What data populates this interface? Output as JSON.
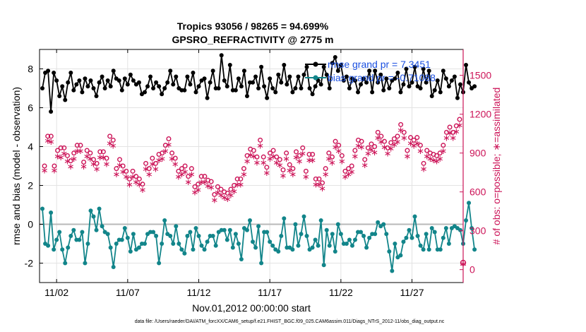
{
  "chart_data": {
    "type": "line",
    "title_line1": "Tropics 93056 / 98265 = 94.699%",
    "title_line2": "GPSRO_REFRACTIVITY @ 2775 m",
    "xlabel": "Nov.01,2012 00:00:00 start",
    "ylabel_left": "rmse and bias (model - observation)",
    "ylabel_right": "# of obs: o=possible; ∗=assimilated",
    "footnote": "data file: /Users/raeder/DAI/ATM_forcXX/CAM6_setup/f.e21.FHIST_BGC.f09_025.CAM6assim.011/Diags_NTrS_2012-11/obs_diag_output.nc",
    "xlim_days": [
      -0.2,
      29.6
    ],
    "ylim_left": [
      -3,
      9
    ],
    "ylim_right": [
      -100,
      1700
    ],
    "x_ticks": [
      {
        "day": 1,
        "label": "11/02"
      },
      {
        "day": 6,
        "label": "11/07"
      },
      {
        "day": 11,
        "label": "11/12"
      },
      {
        "day": 16,
        "label": "11/17"
      },
      {
        "day": 21,
        "label": "11/22"
      },
      {
        "day": 26,
        "label": "11/27"
      }
    ],
    "y_left_ticks": [
      {
        "value": -2,
        "label": "-2"
      },
      {
        "value": 0,
        "label": "0"
      },
      {
        "value": 2,
        "label": "2"
      },
      {
        "value": 4,
        "label": "4"
      },
      {
        "value": 6,
        "label": "6"
      },
      {
        "value": 8,
        "label": "8"
      }
    ],
    "y_right_ticks": [
      {
        "value": 0,
        "label": "0"
      },
      {
        "value": 300,
        "label": "300"
      },
      {
        "value": 600,
        "label": "600"
      },
      {
        "value": 900,
        "label": "900"
      },
      {
        "value": 1200,
        "label": "1200"
      },
      {
        "value": 1500,
        "label": "1500"
      }
    ],
    "colors": {
      "rmse": "#000000",
      "bias": "#12858a",
      "counts": "#cc1458",
      "legend_text": "#1a4fe0",
      "zero_line": "#b8b8b8",
      "grid": "#e3e3e3"
    },
    "series": [
      {
        "name": "rmse",
        "legend": "rmse grand pr = 7.3451",
        "axis": "left",
        "values": [
          7.0,
          7.8,
          7.9,
          5.8,
          7.8,
          7.4,
          6.6,
          7.1,
          6.4,
          7.3,
          7.8,
          6.9,
          7.2,
          7.4,
          6.8,
          7.5,
          7.1,
          7.4,
          7.0,
          6.6,
          7.3,
          7.6,
          7.0,
          7.4,
          7.1,
          7.9,
          7.5,
          7.4,
          6.9,
          7.5,
          7.2,
          7.7,
          7.4,
          7.2,
          7.3,
          6.7,
          6.8,
          7.1,
          7.6,
          7.0,
          7.3,
          7.1,
          6.7,
          7.0,
          7.3,
          7.9,
          7.2,
          7.6,
          7.0,
          6.9,
          6.9,
          7.6,
          7.2,
          7.8,
          6.8,
          7.1,
          7.4,
          7.5,
          6.5,
          7.3,
          7.9,
          7.0,
          7.0,
          8.7,
          7.4,
          7.1,
          8.2,
          6.9,
          6.9,
          7.5,
          7.1,
          7.9,
          6.6,
          7.3,
          7.3,
          7.6,
          7.0,
          8.1,
          7.1,
          6.5,
          7.5,
          7.0,
          6.8,
          7.7,
          7.3,
          8.2,
          7.2,
          7.6,
          6.8,
          7.0,
          7.6,
          7.0,
          7.7,
          8.1,
          7.0,
          6.7,
          7.1,
          7.4,
          7.2,
          8.1,
          7.7,
          7.0,
          8.3,
          8.6,
          7.9,
          8.2,
          7.4,
          7.6,
          7.0,
          7.5,
          7.4,
          6.8,
          7.2,
          7.5,
          7.3,
          7.9,
          6.8,
          7.9,
          7.3,
          7.7,
          6.9,
          7.5,
          7.0,
          7.4,
          7.5,
          7.8,
          6.8,
          7.2,
          8.0,
          7.1,
          7.3,
          8.1,
          7.1,
          7.0,
          8.0,
          7.3,
          7.9,
          6.6,
          6.9,
          7.4,
          6.8,
          7.9,
          7.5,
          7.1,
          7.4,
          7.6,
          6.5,
          7.2,
          6.8,
          8.2,
          7.3,
          7.0,
          7.1
        ]
      },
      {
        "name": "bias",
        "legend": "bias grand pr = -0.71088",
        "axis": "left",
        "values": [
          0.8,
          -1.0,
          -1.1,
          0.6,
          -1.3,
          -0.8,
          -0.4,
          -1.3,
          -2.0,
          -1.2,
          -0.6,
          -0.3,
          -0.8,
          -0.8,
          -0.4,
          -2.0,
          -1.0,
          0.7,
          0.4,
          -0.3,
          0.8,
          -0.1,
          -0.4,
          -0.5,
          -1.2,
          -2.2,
          -1.0,
          -0.8,
          -0.8,
          -0.2,
          -0.7,
          -1.4,
          -0.5,
          -1.3,
          -1.2,
          -1.0,
          -1.0,
          -0.5,
          -0.4,
          -0.4,
          -0.6,
          -2.0,
          -1.0,
          0.2,
          -0.5,
          -0.6,
          -1.0,
          -0.1,
          -1.0,
          -1.3,
          -1.5,
          -0.6,
          -0.4,
          -1.3,
          -0.2,
          -0.6,
          -1.1,
          -1.3,
          -0.9,
          -0.6,
          -0.6,
          -1.1,
          -0.4,
          -0.3,
          -0.3,
          -0.8,
          -0.3,
          -1.2,
          -0.5,
          -1.0,
          -1.8,
          -0.2,
          -0.3,
          0.2,
          -0.9,
          -1.2,
          -0.1,
          -2.0,
          -0.4,
          -0.4,
          -0.9,
          -1.1,
          -1.3,
          -1.4,
          -0.6,
          0.3,
          -1.2,
          -1.2,
          -1.3,
          0.0,
          -1.1,
          -0.5,
          0.4,
          -0.6,
          -1.3,
          -1.2,
          -0.8,
          -1.1,
          0.2,
          -2.1,
          -0.3,
          -1.1,
          -0.5,
          -1.4,
          0.0,
          -0.5,
          -1.0,
          -1.0,
          -0.8,
          -1.1,
          -0.8,
          -0.4,
          -0.4,
          -0.6,
          -1.2,
          -0.7,
          -0.5,
          -0.5,
          0.1,
          -0.1,
          0.0,
          -0.5,
          -1.4,
          -2.4,
          -1.0,
          -1.7,
          -1.6,
          -0.9,
          -0.7,
          -0.3,
          -0.7,
          0.4,
          -0.6,
          -1.1,
          -1.3,
          -0.5,
          -1.3,
          -0.2,
          -0.4,
          -1.3,
          -1.3,
          -0.7,
          -0.2,
          -1.0,
          -0.2,
          -0.1,
          -0.2,
          -0.3,
          -1.0,
          0.2,
          1.1,
          -0.2,
          -1.3
        ]
      },
      {
        "name": "possible",
        "axis": "right",
        "values": [
          800,
          1030,
          1030,
          800,
          920,
          940,
          940,
          880,
          840,
          900,
          960,
          960,
          830,
          920,
          900,
          850,
          820,
          910,
          910,
          860,
          1030,
          1000,
          780,
          850,
          800,
          760,
          700,
          760,
          720,
          700,
          660,
          820,
          780,
          860,
          820,
          890,
          900,
          960,
          1010,
          900,
          860,
          760,
          780,
          800,
          720,
          780,
          640,
          660,
          720,
          720,
          690,
          680,
          580,
          640,
          620,
          600,
          590,
          620,
          650,
          700,
          700,
          780,
          880,
          930,
          920,
          870,
          1000,
          870,
          790,
          900,
          920,
          870,
          850,
          770,
          900,
          810,
          780,
          910,
          880,
          940,
          760,
          890,
          890,
          700,
          700,
          670,
          780,
          900,
          870,
          990,
          960,
          880,
          760,
          780,
          800,
          920,
          1000,
          990,
          850,
          940,
          970,
          950,
          1060,
          1030,
          990,
          940,
          980,
          1010,
          1030,
          1120,
          1060,
          920,
          1020,
          1000,
          1020,
          960,
          820,
          920,
          900,
          890,
          880,
          900,
          960,
          1060,
          1100,
          1060,
          1110,
          1160
        ]
      },
      {
        "name": "assimilated",
        "axis": "right",
        "values": [
          770,
          1000,
          990,
          770,
          880,
          870,
          900,
          840,
          800,
          860,
          920,
          920,
          800,
          880,
          860,
          820,
          780,
          870,
          870,
          820,
          980,
          960,
          740,
          810,
          760,
          720,
          660,
          720,
          680,
          660,
          620,
          780,
          740,
          820,
          780,
          850,
          860,
          920,
          970,
          860,
          820,
          720,
          740,
          760,
          680,
          740,
          600,
          620,
          680,
          680,
          650,
          640,
          540,
          600,
          580,
          560,
          550,
          580,
          610,
          660,
          660,
          740,
          840,
          890,
          880,
          830,
          960,
          830,
          750,
          860,
          880,
          830,
          810,
          730,
          860,
          770,
          740,
          870,
          840,
          900,
          720,
          850,
          850,
          660,
          660,
          630,
          740,
          860,
          830,
          950,
          920,
          840,
          720,
          740,
          760,
          880,
          960,
          950,
          810,
          900,
          930,
          910,
          1020,
          990,
          950,
          900,
          940,
          970,
          990,
          1080,
          1020,
          880,
          980,
          960,
          980,
          920,
          780,
          880,
          860,
          850,
          840,
          860,
          920,
          1020,
          1060,
          1020,
          1070,
          1120
        ]
      }
    ]
  }
}
